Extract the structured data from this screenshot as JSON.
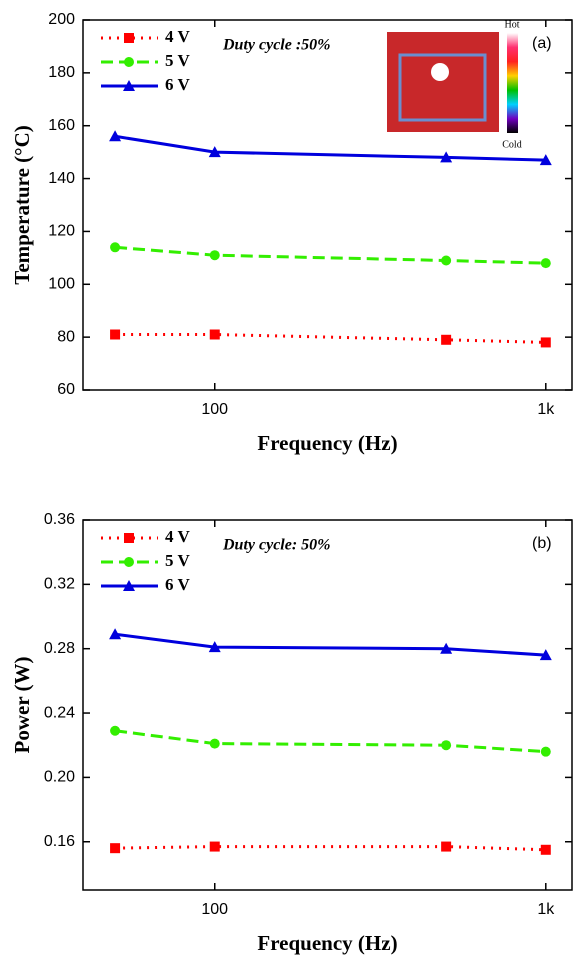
{
  "chart_data": [
    {
      "type": "line",
      "x_label": "Frequency (Hz)",
      "y_label": "Temperature (°C)",
      "annotation": "Duty cycle :50%",
      "panel_label": "(a)",
      "inset_top_label": "Hot",
      "inset_bottom_label": "Cold",
      "x": [
        50,
        100,
        500,
        1000
      ],
      "log_x": true,
      "xlim": [
        40,
        1200
      ],
      "xticks": [
        100,
        {
          "value": 1000,
          "label": "1k"
        }
      ],
      "ylim": [
        60,
        200
      ],
      "yticks": [
        60,
        80,
        100,
        120,
        140,
        160,
        180,
        200
      ],
      "grid": false,
      "series": [
        {
          "name": "4 V",
          "color": "#ff0000",
          "linestyle": "dotted",
          "marker": "square",
          "values": [
            81,
            81,
            79,
            78
          ]
        },
        {
          "name": "5 V",
          "color": "#33ee00",
          "linestyle": "dashed",
          "marker": "circle",
          "values": [
            114,
            111,
            109,
            108
          ]
        },
        {
          "name": "6 V",
          "color": "#0000dd",
          "linestyle": "solid",
          "marker": "triangle",
          "values": [
            156,
            150,
            148,
            147
          ]
        }
      ]
    },
    {
      "type": "line",
      "x_label": "Frequency (Hz)",
      "y_label": "Power (W)",
      "annotation": "Duty cycle: 50%",
      "panel_label": "(b)",
      "x": [
        50,
        100,
        500,
        1000
      ],
      "log_x": true,
      "xlim": [
        40,
        1200
      ],
      "xticks": [
        100,
        {
          "value": 1000,
          "label": "1k"
        }
      ],
      "ylim": [
        0.13,
        0.36
      ],
      "yticks": [
        0.16,
        {
          "value": 0.2,
          "label": "0.20"
        },
        0.24,
        0.28,
        0.32,
        0.36
      ],
      "grid": false,
      "series": [
        {
          "name": "4 V",
          "color": "#ff0000",
          "linestyle": "dotted",
          "marker": "square",
          "values": [
            0.156,
            0.157,
            0.157,
            0.155
          ]
        },
        {
          "name": "5 V",
          "color": "#33ee00",
          "linestyle": "dashed",
          "marker": "circle",
          "values": [
            0.229,
            0.221,
            0.22,
            0.216
          ]
        },
        {
          "name": "6 V",
          "color": "#0000dd",
          "linestyle": "solid",
          "marker": "triangle",
          "values": [
            0.289,
            0.281,
            0.28,
            0.276
          ]
        }
      ]
    }
  ]
}
